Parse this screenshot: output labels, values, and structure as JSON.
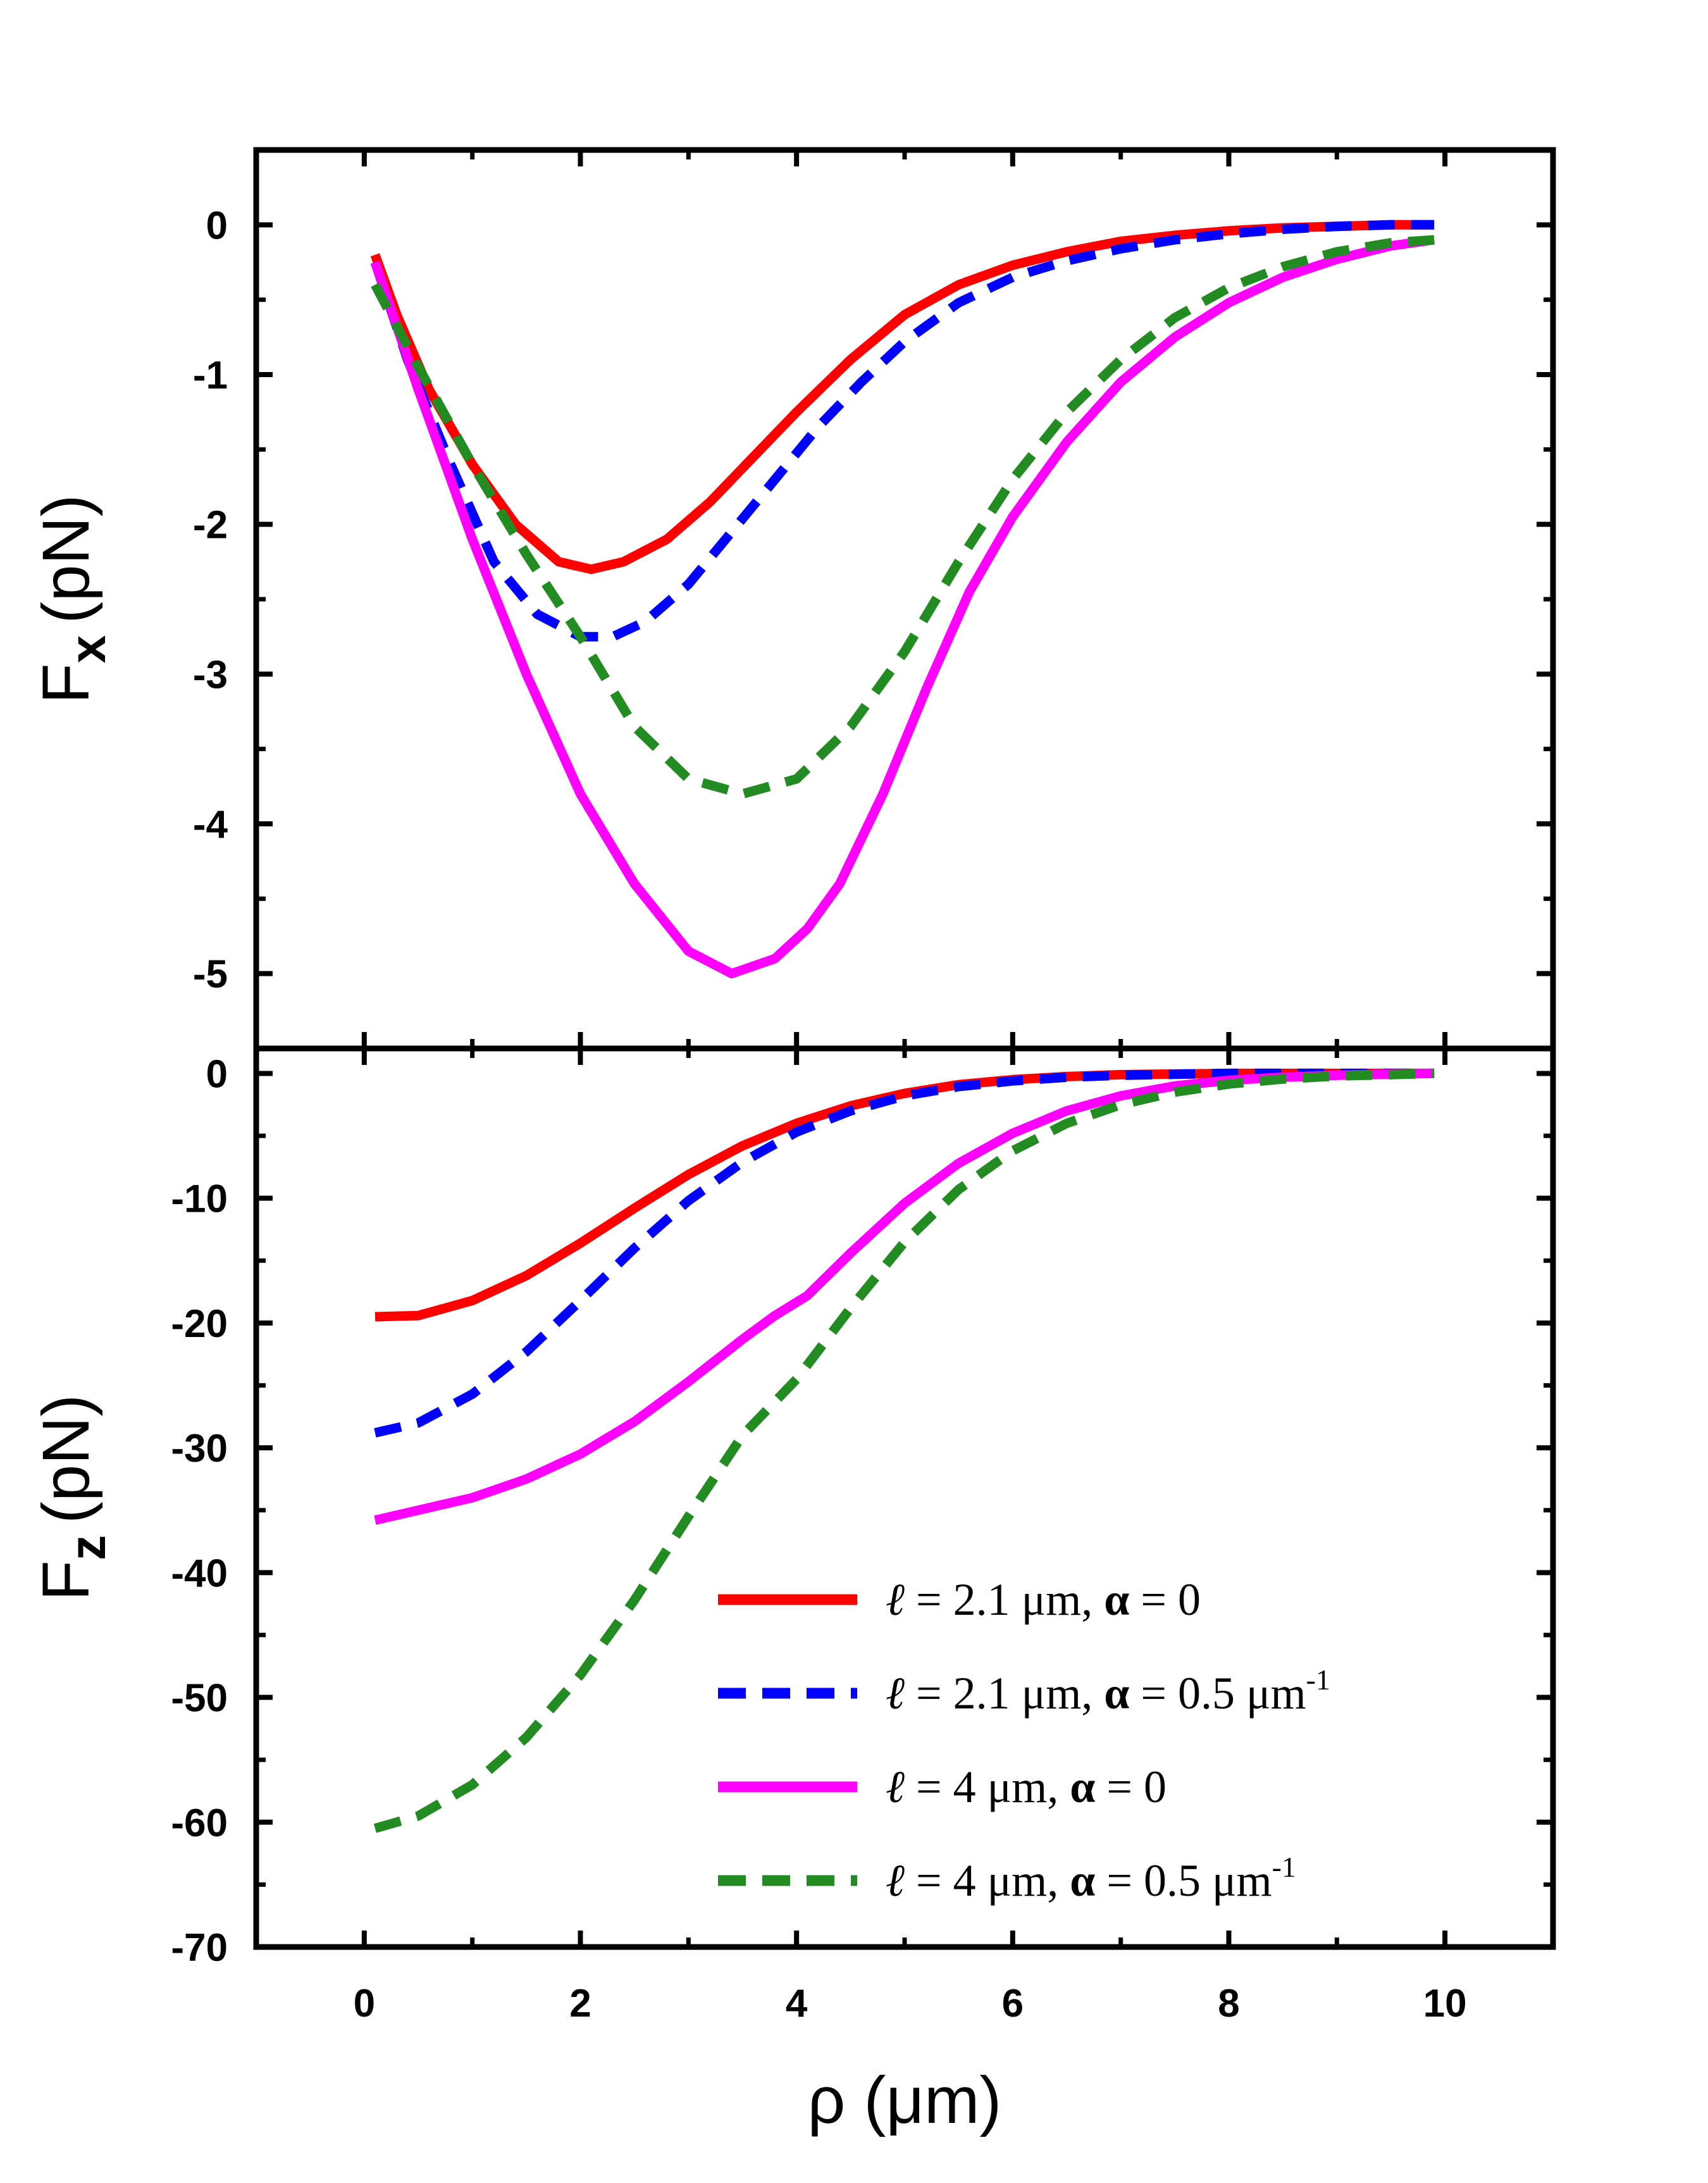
{
  "chart_data": [
    {
      "type": "line",
      "panel": "top",
      "ylabel": "F",
      "ylabel_sub": "x",
      "ylabel_unit": "(pN)",
      "xlim": [
        -1,
        11
      ],
      "ylim": [
        -5.5,
        0.5
      ],
      "yticks": [
        0,
        -1,
        -2,
        -3,
        -4,
        -5
      ],
      "series": [
        {
          "name": "l = 2.1 µm, α = 0",
          "color": "#ff0000",
          "style": "solid",
          "x": [
            0.1,
            0.3,
            0.6,
            1.0,
            1.4,
            1.8,
            2.1,
            2.4,
            2.8,
            3.2,
            3.6,
            4.0,
            4.5,
            5.0,
            5.5,
            6.0,
            6.5,
            7.0,
            7.5,
            8.0,
            8.5,
            9.0,
            9.5,
            9.9
          ],
          "y": [
            -0.2,
            -0.6,
            -1.1,
            -1.6,
            -2.0,
            -2.25,
            -2.3,
            -2.25,
            -2.1,
            -1.85,
            -1.55,
            -1.25,
            -0.9,
            -0.6,
            -0.4,
            -0.27,
            -0.18,
            -0.11,
            -0.07,
            -0.04,
            -0.02,
            -0.01,
            0.0,
            0.0
          ]
        },
        {
          "name": "l = 2.1 µm, α = 0.5 µm⁻¹",
          "color": "#0000ff",
          "style": "dashed",
          "x": [
            0.1,
            0.4,
            0.8,
            1.2,
            1.6,
            2.0,
            2.3,
            2.6,
            3.0,
            3.4,
            3.8,
            4.2,
            4.6,
            5.0,
            5.5,
            6.0,
            6.5,
            7.0,
            7.5,
            8.0,
            8.5,
            9.0,
            9.5,
            9.9
          ],
          "y": [
            -0.25,
            -0.9,
            -1.6,
            -2.25,
            -2.6,
            -2.75,
            -2.75,
            -2.65,
            -2.4,
            -2.05,
            -1.7,
            -1.35,
            -1.05,
            -0.78,
            -0.52,
            -0.35,
            -0.24,
            -0.16,
            -0.1,
            -0.06,
            -0.03,
            -0.01,
            0.0,
            0.0
          ]
        },
        {
          "name": "l = 4 µm, α = 0",
          "color": "#ff00ff",
          "style": "solid",
          "x": [
            0.1,
            0.5,
            1.0,
            1.5,
            2.0,
            2.5,
            3.0,
            3.4,
            3.8,
            4.1,
            4.4,
            4.8,
            5.2,
            5.6,
            6.0,
            6.5,
            7.0,
            7.5,
            8.0,
            8.5,
            9.0,
            9.5,
            9.9
          ],
          "y": [
            -0.25,
            -1.1,
            -2.1,
            -3.0,
            -3.8,
            -4.4,
            -4.85,
            -5.0,
            -4.9,
            -4.7,
            -4.4,
            -3.8,
            -3.1,
            -2.45,
            -1.95,
            -1.45,
            -1.05,
            -0.75,
            -0.52,
            -0.35,
            -0.23,
            -0.14,
            -0.1
          ]
        },
        {
          "name": "l = 4 µm, α = 0.5 µm⁻¹",
          "color": "#228b22",
          "style": "dashed",
          "x": [
            0.1,
            0.5,
            1.0,
            1.5,
            2.0,
            2.5,
            3.0,
            3.5,
            4.0,
            4.5,
            5.0,
            5.5,
            6.0,
            6.5,
            7.0,
            7.5,
            8.0,
            8.5,
            9.0,
            9.5,
            9.9
          ],
          "y": [
            -0.4,
            -0.95,
            -1.6,
            -2.2,
            -2.75,
            -3.35,
            -3.7,
            -3.8,
            -3.7,
            -3.35,
            -2.85,
            -2.25,
            -1.7,
            -1.25,
            -0.9,
            -0.62,
            -0.42,
            -0.28,
            -0.18,
            -0.12,
            -0.1
          ]
        }
      ]
    },
    {
      "type": "line",
      "panel": "bottom",
      "ylabel": "F",
      "ylabel_sub": "z",
      "ylabel_unit": "(pN)",
      "xlabel": "ρ (µm)",
      "xlim": [
        -1,
        11
      ],
      "ylim": [
        -70,
        2
      ],
      "xticks": [
        0,
        2,
        4,
        6,
        8,
        10
      ],
      "yticks": [
        0,
        -10,
        -20,
        -30,
        -40,
        -50,
        -60,
        -70
      ],
      "legend_position": "bottom-right",
      "series": [
        {
          "name": "l = 2.1 µm, α = 0",
          "color": "#ff0000",
          "style": "solid",
          "x": [
            0.1,
            0.5,
            1.0,
            1.5,
            2.0,
            2.5,
            3.0,
            3.5,
            4.0,
            4.5,
            5.0,
            5.5,
            6.0,
            6.5,
            7.0,
            7.5,
            8.0,
            8.5,
            9.0,
            9.5,
            9.9
          ],
          "y": [
            -19.5,
            -19.4,
            -18.2,
            -16.2,
            -13.6,
            -10.8,
            -8.1,
            -5.8,
            -4.0,
            -2.6,
            -1.6,
            -0.9,
            -0.5,
            -0.25,
            -0.1,
            -0.05,
            0.0,
            0.0,
            0.0,
            0.0,
            0.0
          ]
        },
        {
          "name": "l = 2.1 µm, α = 0.5 µm⁻¹",
          "color": "#0000ff",
          "style": "dashed",
          "x": [
            0.1,
            0.5,
            1.0,
            1.5,
            2.0,
            2.5,
            3.0,
            3.5,
            4.0,
            4.5,
            5.0,
            5.5,
            6.0,
            6.5,
            7.0,
            7.5,
            8.0,
            8.5,
            9.0,
            9.5,
            9.9
          ],
          "y": [
            -28.8,
            -28.0,
            -25.7,
            -22.3,
            -18.2,
            -14.0,
            -10.2,
            -7.1,
            -4.7,
            -3.0,
            -1.8,
            -1.05,
            -0.6,
            -0.3,
            -0.15,
            -0.07,
            0.0,
            0.0,
            0.0,
            0.0,
            0.0
          ]
        },
        {
          "name": "l = 4 µm, α = 0",
          "color": "#ff00ff",
          "style": "solid",
          "x": [
            0.1,
            0.5,
            1.0,
            1.5,
            2.0,
            2.5,
            3.0,
            3.5,
            3.8,
            4.1,
            4.5,
            5.0,
            5.5,
            6.0,
            6.5,
            7.0,
            7.5,
            8.0,
            8.5,
            9.0,
            9.5,
            9.9
          ],
          "y": [
            -35.8,
            -35.0,
            -34.0,
            -32.5,
            -30.5,
            -27.9,
            -24.7,
            -21.3,
            -19.4,
            -17.8,
            -14.4,
            -10.4,
            -7.2,
            -4.8,
            -3.0,
            -1.8,
            -1.0,
            -0.55,
            -0.3,
            -0.15,
            -0.05,
            0.0
          ]
        },
        {
          "name": "l = 4 µm, α = 0.5 µm⁻¹",
          "color": "#228b22",
          "style": "dashed",
          "x": [
            0.1,
            0.5,
            1.0,
            1.5,
            2.0,
            2.5,
            3.0,
            3.5,
            4.0,
            4.5,
            5.0,
            5.5,
            6.0,
            6.5,
            7.0,
            7.5,
            8.0,
            8.5,
            9.0,
            9.5,
            9.9
          ],
          "y": [
            -60.5,
            -59.5,
            -57.0,
            -53.2,
            -48.2,
            -42.2,
            -35.5,
            -29.0,
            -24.5,
            -18.8,
            -13.5,
            -9.3,
            -6.2,
            -4.0,
            -2.5,
            -1.5,
            -0.85,
            -0.45,
            -0.2,
            -0.1,
            0.0
          ]
        }
      ]
    }
  ],
  "legend": {
    "items": [
      {
        "symbol": "ℓ",
        "text1": " = 2.1 μm, ",
        "greek": "α",
        "text2": " = 0",
        "sup": "",
        "color": "#ff0000",
        "style": "solid"
      },
      {
        "symbol": "ℓ",
        "text1": " = 2.1 μm, ",
        "greek": "α",
        "text2": " = 0.5 μm",
        "sup": "-1",
        "color": "#0000ff",
        "style": "dashed"
      },
      {
        "symbol": "ℓ",
        "text1": " = 4 μm, ",
        "greek": "α",
        "text2": " = 0",
        "sup": "",
        "color": "#ff00ff",
        "style": "solid"
      },
      {
        "symbol": "ℓ",
        "text1": " = 4 μm, ",
        "greek": "α",
        "text2": " = 0.5 μm",
        "sup": "-1",
        "color": "#228b22",
        "style": "dashed"
      }
    ]
  },
  "axis_titles": {
    "top_y_main": "F",
    "top_y_sub": "x",
    "top_y_unit": "(pN)",
    "bottom_y_main": "F",
    "bottom_y_sub": "z",
    "bottom_y_unit": "(pN)",
    "x_title": "ρ (μm)"
  }
}
